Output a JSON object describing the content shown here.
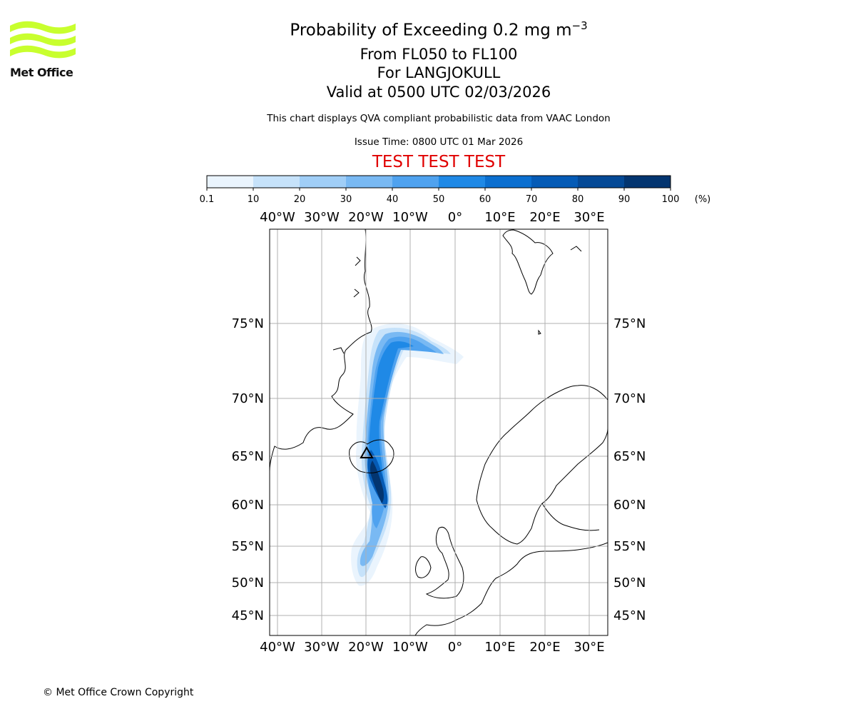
{
  "logo": {
    "name": "Met Office",
    "wave_color": "#c8ff2e"
  },
  "header": {
    "title_main": "Probability of Exceeding 0.2 mg m",
    "title_superscript": "−3",
    "levels": "From FL050 to FL100",
    "volcano": "For LANGJOKULL",
    "valid": "Valid at 0500 UTC 02/03/2026",
    "description": "This chart displays QVA compliant probabilistic data from VAAC London",
    "issue_time": "Issue Time: 0800 UTC 01 Mar 2026",
    "test_banner": "TEST TEST TEST"
  },
  "colorbar": {
    "ticks": [
      "0.1",
      "10",
      "20",
      "30",
      "40",
      "50",
      "60",
      "70",
      "80",
      "90",
      "100"
    ],
    "unit": "(%)",
    "colors": [
      "#eaf4fd",
      "#c6e2fa",
      "#a0cef7",
      "#79b9f3",
      "#4fa2ef",
      "#1f89e6",
      "#0b6fd0",
      "#055bb6",
      "#044996",
      "#033570"
    ]
  },
  "map": {
    "lon_labels": [
      "40°W",
      "30°W",
      "20°W",
      "10°W",
      "0°",
      "10°E",
      "20°E",
      "30°E"
    ],
    "lat_labels": [
      "75°N",
      "70°N",
      "65°N",
      "60°N",
      "55°N",
      "50°N",
      "45°N"
    ],
    "volcano_marker": "triangle-volcano-icon"
  },
  "footer": {
    "copyright": "© Met Office Crown Copyright"
  }
}
